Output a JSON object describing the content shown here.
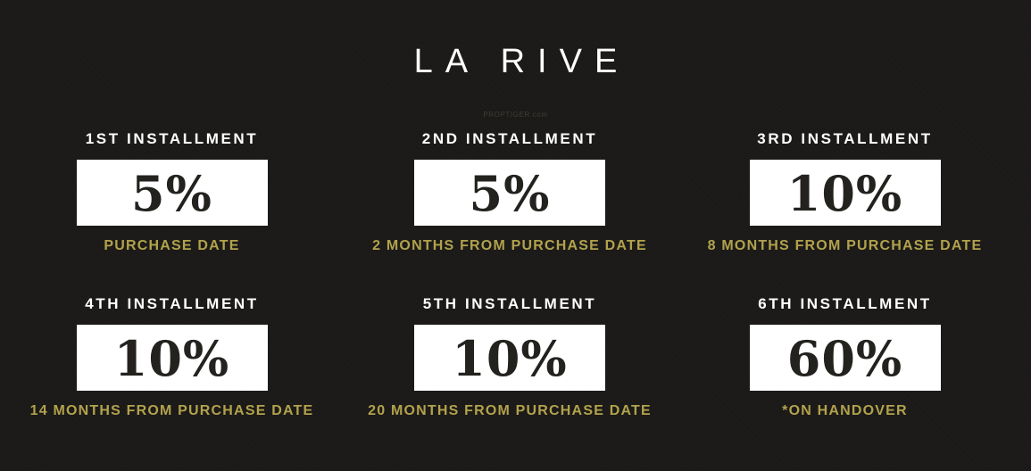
{
  "title": "LA RIVE",
  "watermark": "PROPTIGER.com",
  "colors": {
    "background": "#1b1a18",
    "accent_gold": "#b2a24c",
    "box_background": "#ffffff",
    "percent_text": "#23221f",
    "heading_text": "#ffffff"
  },
  "installments": [
    {
      "label": "1ST INSTALLMENT",
      "percent": "5%",
      "caption": "PURCHASE DATE"
    },
    {
      "label": "2ND INSTALLMENT",
      "percent": "5%",
      "caption": "2 MONTHS FROM PURCHASE DATE"
    },
    {
      "label": "3RD INSTALLMENT",
      "percent": "10%",
      "caption": "8 MONTHS FROM PURCHASE DATE"
    },
    {
      "label": "4TH INSTALLMENT",
      "percent": "10%",
      "caption": "14 MONTHS FROM PURCHASE DATE"
    },
    {
      "label": "5TH INSTALLMENT",
      "percent": "10%",
      "caption": "20 MONTHS FROM PURCHASE DATE"
    },
    {
      "label": "6TH INSTALLMENT",
      "percent": "60%",
      "caption": "*ON HANDOVER"
    }
  ]
}
